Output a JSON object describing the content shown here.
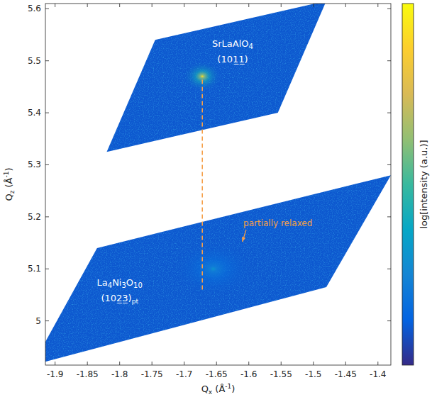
{
  "chart_data": {
    "type": "heatmap",
    "x_label": {
      "base": "Q",
      "sub": "x",
      "unit": " (Å",
      "power": "-1",
      "close": ")"
    },
    "y_label": {
      "base": "Q",
      "sub": "z",
      "unit": " (Å",
      "power": "-1",
      "close": ")"
    },
    "xlim": [
      -1.915,
      -1.38
    ],
    "ylim": [
      4.915,
      5.61
    ],
    "xticks": [
      -1.9,
      -1.85,
      -1.8,
      -1.75,
      -1.7,
      -1.65,
      -1.6,
      -1.55,
      -1.5,
      -1.45,
      -1.4
    ],
    "yticks": [
      5,
      5.1,
      5.2,
      5.3,
      5.4,
      5.5,
      5.6
    ],
    "grid": false,
    "colorbar": {
      "label": "log[intensity (a.u.)]",
      "range": [
        0,
        1
      ],
      "colors": [
        "#352a87",
        "#0363e1",
        "#1485d4",
        "#06a7c6",
        "#38b99e",
        "#92bf73",
        "#d9ba56",
        "#fcce2e",
        "#f9fb0e"
      ]
    },
    "regions": [
      {
        "formula": "SrLaAlO4",
        "index": "(101̲1̲)",
        "label_x": -1.625,
        "label_y": [
          5.527,
          5.497
        ],
        "qx": [
          -1.745,
          -1.48,
          -1.555,
          -1.82
        ],
        "qz": [
          5.54,
          5.615,
          5.4,
          5.325
        ],
        "background": 0.1,
        "peak": {
          "qx": -1.672,
          "qz": 5.47,
          "intensity": 1,
          "width_qx": 0.012,
          "width_qz": 0.012
        }
      },
      {
        "formula": "La4Ni3O10",
        "index": "(102̲3̲)",
        "index_sub": "pt",
        "label_x": -1.8,
        "label_y": [
          5.068,
          5.037
        ],
        "qx": [
          -1.835,
          -1.38,
          -1.48,
          -1.935
        ],
        "qz": [
          5.14,
          5.28,
          5.065,
          4.915
        ],
        "background": 0.1,
        "peak": {
          "qx": -1.655,
          "qz": 5.1,
          "intensity": 0.3,
          "width_qx": 0.025,
          "width_qz": 0.022
        }
      }
    ],
    "guide_line": {
      "qx": -1.672,
      "qz": [
        5.06,
        5.47
      ],
      "color": "#f5a04a",
      "line_style": "dashed"
    },
    "annotations": [
      {
        "text": "partially relaxed",
        "x": -1.555,
        "y": 5.182,
        "arrow_to": [
          -1.61,
          5.152
        ],
        "color": "#f5a04a"
      }
    ]
  }
}
